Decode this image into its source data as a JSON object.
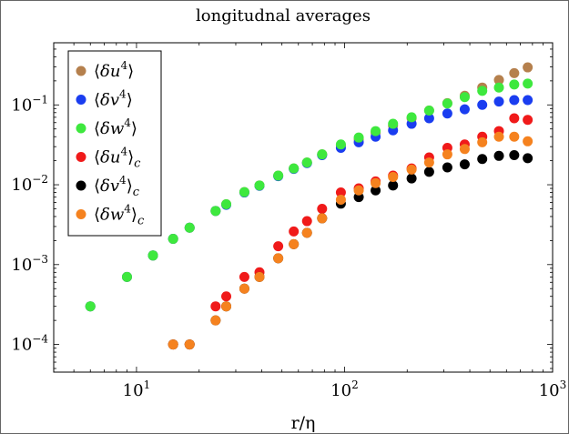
{
  "chart_data": {
    "type": "scatter",
    "title": "longitudnal averages",
    "xlabel": "r/η",
    "ylabel": "",
    "xscale": "log",
    "yscale": "log",
    "xlim": [
      4,
      1000
    ],
    "ylim": [
      4.5e-05,
      0.6
    ],
    "xticks": [
      {
        "value": 10,
        "mantissa": "10",
        "exp": "1"
      },
      {
        "value": 100,
        "mantissa": "10",
        "exp": "2"
      },
      {
        "value": 1000,
        "mantissa": "10",
        "exp": "3"
      }
    ],
    "yticks": [
      {
        "value": 0.0001,
        "mantissa": "10",
        "exp": "−4"
      },
      {
        "value": 0.001,
        "mantissa": "10",
        "exp": "−3"
      },
      {
        "value": 0.01,
        "mantissa": "10",
        "exp": "−2"
      },
      {
        "value": 0.1,
        "mantissa": "10",
        "exp": "−1"
      }
    ],
    "legend_position": "top-left",
    "series": [
      {
        "name": "⟨δu⁴⟩",
        "var": "u",
        "sub": "",
        "color": "#b5804d",
        "x": [
          6,
          9,
          12,
          15,
          18,
          24,
          27,
          33,
          39,
          48,
          57,
          66,
          78,
          96,
          117,
          141,
          171,
          210,
          255,
          312,
          378,
          459,
          552,
          654,
          759
        ],
        "y": [
          0.0003,
          0.0007,
          0.0013,
          0.0021,
          0.0029,
          0.0047,
          0.0057,
          0.0081,
          0.0098,
          0.013,
          0.016,
          0.019,
          0.024,
          0.031,
          0.037,
          0.045,
          0.055,
          0.068,
          0.085,
          0.105,
          0.13,
          0.165,
          0.205,
          0.25,
          0.295
        ]
      },
      {
        "name": "⟨δv⁴⟩",
        "var": "v",
        "sub": "",
        "color": "#1a3df0",
        "x": [
          6,
          9,
          12,
          15,
          18,
          24,
          27,
          33,
          39,
          48,
          57,
          66,
          78,
          96,
          117,
          141,
          171,
          210,
          255,
          312,
          378,
          459,
          552,
          654,
          759
        ],
        "y": [
          0.0003,
          0.0007,
          0.0013,
          0.0021,
          0.0029,
          0.0047,
          0.0056,
          0.008,
          0.0097,
          0.0128,
          0.0158,
          0.0187,
          0.0235,
          0.029,
          0.034,
          0.04,
          0.048,
          0.058,
          0.068,
          0.078,
          0.088,
          0.1,
          0.11,
          0.115,
          0.115
        ]
      },
      {
        "name": "⟨δw⁴⟩",
        "var": "w",
        "sub": "",
        "color": "#3ee83e",
        "x": [
          6,
          9,
          12,
          15,
          18,
          24,
          27,
          33,
          39,
          48,
          57,
          66,
          78,
          96,
          117,
          141,
          171,
          210,
          255,
          312,
          378,
          459,
          552,
          654,
          759
        ],
        "y": [
          0.0003,
          0.0007,
          0.0013,
          0.0021,
          0.0029,
          0.0047,
          0.0057,
          0.0081,
          0.0098,
          0.013,
          0.016,
          0.019,
          0.024,
          0.032,
          0.039,
          0.047,
          0.058,
          0.07,
          0.085,
          0.104,
          0.125,
          0.15,
          0.165,
          0.18,
          0.185
        ]
      },
      {
        "name": "⟨δu⁴⟩c",
        "var": "u",
        "sub": "c",
        "color": "#f01a1a",
        "x": [
          15,
          18,
          24,
          27,
          33,
          39,
          48,
          57,
          66,
          78,
          96,
          117,
          141,
          171,
          210,
          255,
          312,
          378,
          459,
          552,
          654,
          759
        ],
        "y": [
          0.0001,
          0.0001,
          0.0003,
          0.0004,
          0.0007,
          0.0008,
          0.0017,
          0.0026,
          0.0035,
          0.005,
          0.008,
          0.009,
          0.011,
          0.013,
          0.016,
          0.022,
          0.029,
          0.032,
          0.04,
          0.047,
          0.068,
          0.065
        ]
      },
      {
        "name": "⟨δv⁴⟩c",
        "var": "v",
        "sub": "c",
        "color": "#000000",
        "x": [
          15,
          18,
          24,
          27,
          33,
          39,
          48,
          57,
          66,
          78,
          96,
          117,
          141,
          171,
          210,
          255,
          312,
          378,
          459,
          552,
          654,
          759
        ],
        "y": [
          0.0001,
          0.0001,
          0.0002,
          0.0003,
          0.0005,
          0.0007,
          0.0012,
          0.0018,
          0.0025,
          0.0038,
          0.0058,
          0.007,
          0.0085,
          0.0098,
          0.012,
          0.0145,
          0.0165,
          0.018,
          0.021,
          0.023,
          0.0235,
          0.0215
        ]
      },
      {
        "name": "⟨δw⁴⟩c",
        "var": "w",
        "sub": "c",
        "color": "#f5821f",
        "x": [
          15,
          18,
          24,
          27,
          33,
          39,
          48,
          57,
          66,
          78,
          96,
          117,
          141,
          171,
          210,
          255,
          312,
          378,
          459,
          552,
          654,
          759
        ],
        "y": [
          0.0001,
          0.0001,
          0.0002,
          0.0003,
          0.0005,
          0.0007,
          0.0012,
          0.0018,
          0.0025,
          0.0038,
          0.0065,
          0.0085,
          0.0105,
          0.0125,
          0.0155,
          0.019,
          0.024,
          0.028,
          0.034,
          0.04,
          0.04,
          0.035
        ]
      }
    ]
  }
}
